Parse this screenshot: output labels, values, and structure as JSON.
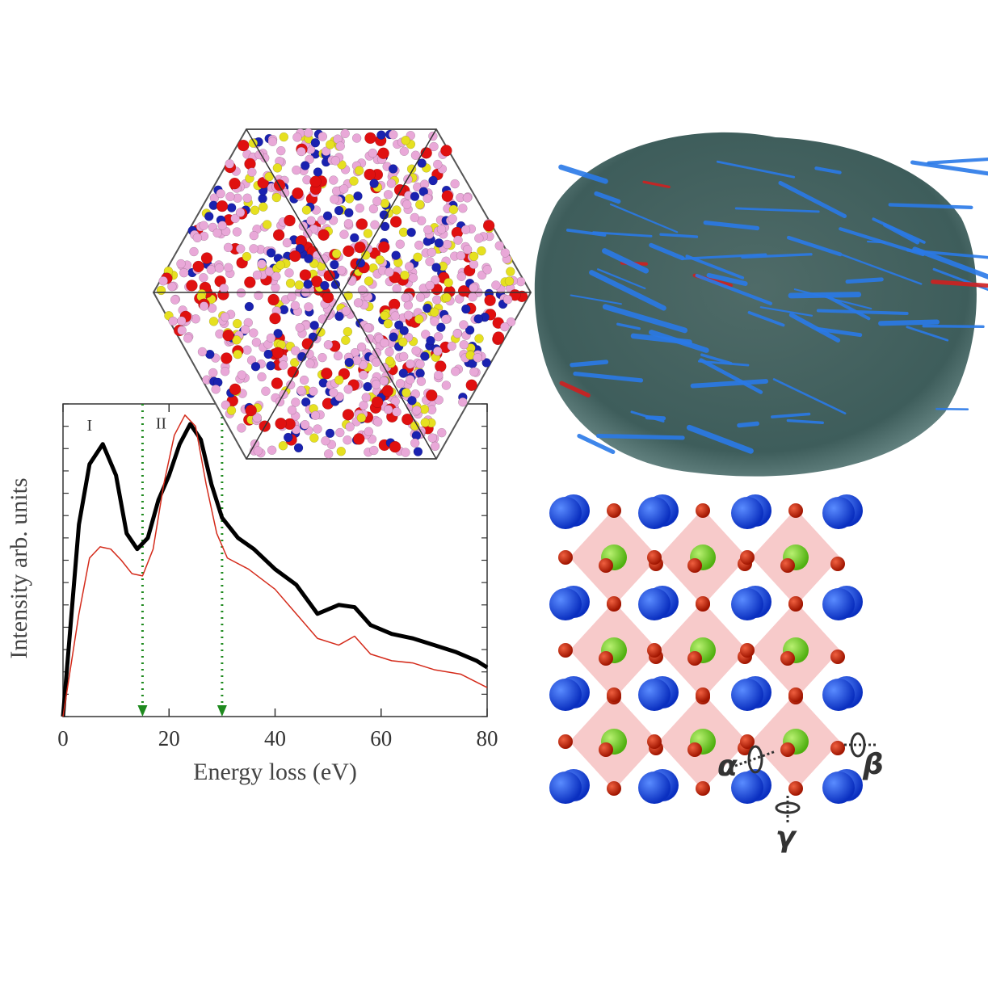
{
  "chart_data": {
    "type": "line",
    "xlabel": "Energy loss (eV)",
    "ylabel": "Intensity arb. units",
    "xlim": [
      0,
      80
    ],
    "xticks": [
      0,
      20,
      40,
      60,
      80
    ],
    "ylim": [
      0,
      14
    ],
    "yticks": [
      0,
      1,
      2,
      3,
      4,
      5,
      6,
      7,
      8,
      9,
      10,
      11,
      12,
      13,
      14
    ],
    "annotations": [
      {
        "text": "I",
        "x": 5,
        "y": 12.8
      },
      {
        "text": "II",
        "x": 18.5,
        "y": 12.9
      }
    ],
    "vlines": [
      {
        "x": 15,
        "color": "#1f8a1f"
      },
      {
        "x": 30,
        "color": "#1f8a1f"
      }
    ],
    "series": [
      {
        "color": "#000000",
        "x": [
          0,
          3,
          5,
          7.5,
          10,
          12,
          14,
          16,
          18,
          20,
          22,
          24,
          26,
          28,
          30,
          33,
          36,
          40,
          44,
          48,
          52,
          55,
          58,
          62,
          66,
          70,
          74,
          78,
          80
        ],
        "values": [
          0,
          8.6,
          11.3,
          12.2,
          10.8,
          8.2,
          7.5,
          8.0,
          9.7,
          10.8,
          12.2,
          13.1,
          12.4,
          10.4,
          8.9,
          8.0,
          7.5,
          6.6,
          5.9,
          4.6,
          5.0,
          4.9,
          4.1,
          3.7,
          3.5,
          3.2,
          2.9,
          2.5,
          2.2
        ]
      },
      {
        "color": "#d42a1a",
        "x": [
          0,
          3,
          5,
          7,
          9,
          11,
          13,
          15,
          17,
          19,
          21,
          23,
          25,
          27,
          29,
          31,
          35,
          40,
          44,
          48,
          52,
          55,
          58,
          62,
          66,
          70,
          75,
          80
        ],
        "values": [
          0,
          4.6,
          7.1,
          7.6,
          7.5,
          7.0,
          6.4,
          6.3,
          7.5,
          10.4,
          12.6,
          13.5,
          13.0,
          10.4,
          8.2,
          7.1,
          6.6,
          5.7,
          4.6,
          3.5,
          3.2,
          3.6,
          2.8,
          2.5,
          2.4,
          2.1,
          1.9,
          1.3
        ]
      }
    ]
  },
  "structure_labels": {
    "alpha": "α",
    "beta": "β",
    "gamma": "γ"
  }
}
